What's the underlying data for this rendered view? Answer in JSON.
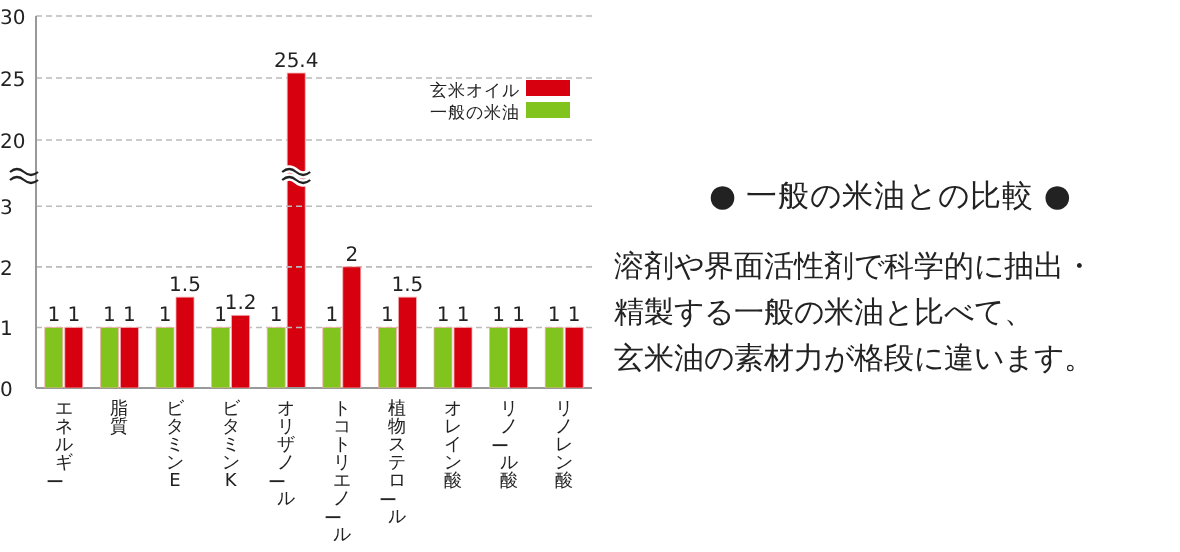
{
  "chart_data": [
    {
      "type": "bar",
      "categories": [
        null,
        null,
        null,
        null,
        null,
        null,
        null,
        null,
        null,
        null
      ],
      "tick_labels": "y",
      "ylim": [
        0,
        30
      ],
      "yticks": [
        20,
        25,
        30
      ],
      "grid": "y",
      "legend": "top right",
      "data_labels": true,
      "series": [
        {
          "name": "玄米オイル",
          "color": "#d7000f",
          "values": [
            null,
            null,
            null,
            null,
            25.4,
            null,
            null,
            null,
            null,
            null
          ]
        },
        {
          "name": "一般の米油",
          "color": "#82c41e",
          "values": [
            null,
            null,
            null,
            null,
            null,
            null,
            null,
            null,
            null,
            null
          ]
        }
      ]
    },
    {
      "type": "bar",
      "categories": [
        "エネルギー",
        "脂質",
        "ビタミンE",
        "ビタミンK",
        "オリザノール",
        "トコトリエノール",
        "植物ステロール",
        "オレイン酸",
        "リノール酸",
        "リノレン酸"
      ],
      "ylim": [
        0,
        3.5
      ],
      "yticks": [
        0,
        1,
        2,
        3
      ],
      "grid": "y",
      "series": [
        {
          "color": "#d7000f",
          "values": [
            1,
            1,
            1.5,
            1.2,
            null,
            2,
            1.5,
            1,
            1,
            1
          ],
          "value_labels": [
            "1",
            "1",
            "1.5",
            "1.2",
            null,
            "2",
            "1.5",
            "1",
            "1",
            "1"
          ]
        },
        {
          "color": "#82c41e",
          "values": [
            1,
            1,
            1,
            1,
            1,
            1,
            1,
            1,
            1,
            1
          ],
          "value_labels": [
            "1",
            "1",
            "1",
            "1",
            "1",
            "1",
            "1",
            "1",
            "1",
            "1"
          ]
        }
      ]
    },
    {
      "type": "other",
      "title": "● 一般の米油との比較 ●",
      "annotations": [
        "溶剤や界面活性剤で科学的に抽出・",
        "精製する一般の米油と比べて、",
        "玄米油の素材力が格段に違います。"
      ]
    }
  ]
}
